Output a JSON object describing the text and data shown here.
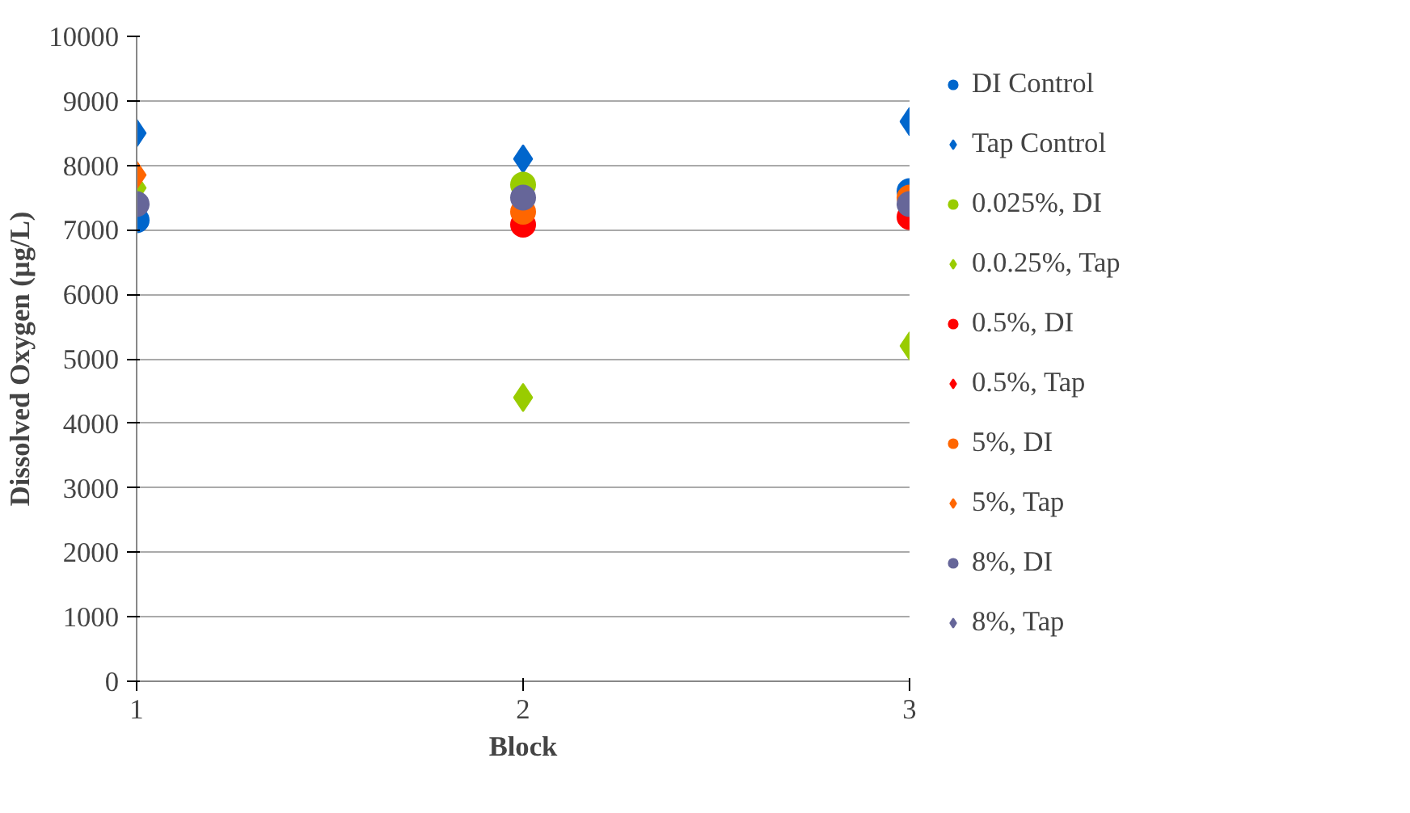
{
  "chart_data": {
    "type": "scatter",
    "xlabel": "Block",
    "ylabel": "Dissolved Oxygen (µg/L)",
    "x": [
      1,
      2,
      3
    ],
    "xlim": [
      1,
      3
    ],
    "xticks": [
      1,
      2,
      3
    ],
    "ylim": [
      0,
      10000
    ],
    "yticks": [
      0,
      1000,
      2000,
      3000,
      4000,
      5000,
      6000,
      7000,
      8000,
      9000,
      10000
    ],
    "grid": "y",
    "legend": "right",
    "series": [
      {
        "name": "DI Control",
        "color": "#0066cc",
        "marker": "circle",
        "values": [
          7150,
          null,
          7600
        ]
      },
      {
        "name": "Tap Control",
        "color": "#0066cc",
        "marker": "diamond",
        "values": [
          8500,
          8100,
          8680
        ]
      },
      {
        "name": "0.025%, DI",
        "color": "#99cc00",
        "marker": "circle",
        "values": [
          null,
          7700,
          null
        ]
      },
      {
        "name": "0.0.25%, Tap",
        "color": "#99cc00",
        "marker": "diamond",
        "values": [
          7650,
          4400,
          5200
        ]
      },
      {
        "name": "0.5%, DI",
        "color": "#ff0000",
        "marker": "circle",
        "values": [
          null,
          7080,
          7200
        ]
      },
      {
        "name": "0.5%, Tap",
        "color": "#ff0000",
        "marker": "diamond",
        "values": [
          null,
          null,
          null
        ]
      },
      {
        "name": "5%, DI",
        "color": "#ff6600",
        "marker": "circle",
        "values": [
          null,
          7280,
          7500
        ]
      },
      {
        "name": "5%, Tap",
        "color": "#ff6600",
        "marker": "diamond",
        "values": [
          7850,
          null,
          null
        ]
      },
      {
        "name": "8%, DI",
        "color": "#666699",
        "marker": "circle",
        "values": [
          7400,
          7500,
          7400
        ]
      },
      {
        "name": "8%, Tap",
        "color": "#666699",
        "marker": "diamond",
        "values": [
          null,
          null,
          null
        ]
      }
    ]
  }
}
